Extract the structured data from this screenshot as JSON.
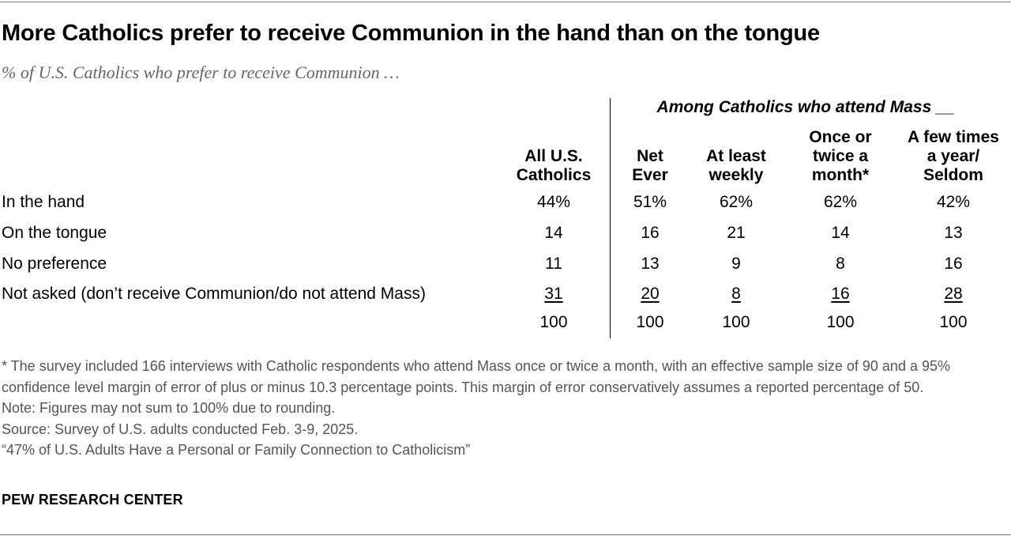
{
  "title": "More Catholics prefer to receive Communion in the hand than on the tongue",
  "subtitle": "% of U.S. Catholics who prefer to receive Communion …",
  "group_header": "Among Catholics who attend Mass __",
  "columns": [
    {
      "lines": [
        "All U.S.",
        "Catholics"
      ]
    },
    {
      "lines": [
        "Net",
        "Ever"
      ]
    },
    {
      "lines": [
        "At least",
        "weekly"
      ]
    },
    {
      "lines": [
        "Once or",
        "twice a",
        "month*"
      ]
    },
    {
      "lines": [
        "A few times",
        "a year/",
        "Seldom"
      ]
    }
  ],
  "rows": [
    {
      "label": "In the hand",
      "values": [
        "44%",
        "51%",
        "62%",
        "62%",
        "42%"
      ],
      "underline": false
    },
    {
      "label": "On the tongue",
      "values": [
        "14",
        "16",
        "21",
        "14",
        "13"
      ],
      "underline": false
    },
    {
      "label": "No preference",
      "values": [
        "11",
        "13",
        "9",
        "8",
        "16"
      ],
      "underline": false
    },
    {
      "label": "Not asked (don’t receive Communion/do not attend Mass)",
      "values": [
        "31",
        "20",
        "8",
        "16",
        "28"
      ],
      "underline": true
    },
    {
      "label": "",
      "values": [
        "100",
        "100",
        "100",
        "100",
        "100"
      ],
      "underline": false
    }
  ],
  "chart_data": {
    "type": "table",
    "title": "More Catholics prefer to receive Communion in the hand than on the tongue",
    "subtitle": "% of U.S. Catholics who prefer to receive Communion …",
    "categories": [
      "In the hand",
      "On the tongue",
      "No preference",
      "Not asked (don’t receive Communion/do not attend Mass)",
      ""
    ],
    "series": [
      {
        "name": "All U.S. Catholics",
        "values": [
          44,
          14,
          11,
          31,
          100
        ]
      },
      {
        "name": "Net Ever",
        "values": [
          51,
          16,
          13,
          20,
          100
        ]
      },
      {
        "name": "At least weekly",
        "values": [
          62,
          21,
          9,
          8,
          100
        ]
      },
      {
        "name": "Once or twice a month*",
        "values": [
          62,
          14,
          8,
          16,
          100
        ]
      },
      {
        "name": "A few times a year/ Seldom",
        "values": [
          42,
          13,
          16,
          28,
          100
        ]
      }
    ]
  },
  "notes": [
    "* The survey included 166 interviews with Catholic respondents who attend Mass once or twice a month, with an effective sample size of 90 and a 95% confidence level margin of error of plus or minus 10.3 percentage points. This margin of error conservatively assumes a reported percentage of 50.",
    "Note: Figures may not sum to 100% due to rounding.",
    "Source: Survey of U.S. adults conducted Feb. 3-9, 2025.",
    "“47% of U.S. Adults Have a Personal or Family Connection to Catholicism”"
  ],
  "brand": "PEW RESEARCH CENTER"
}
